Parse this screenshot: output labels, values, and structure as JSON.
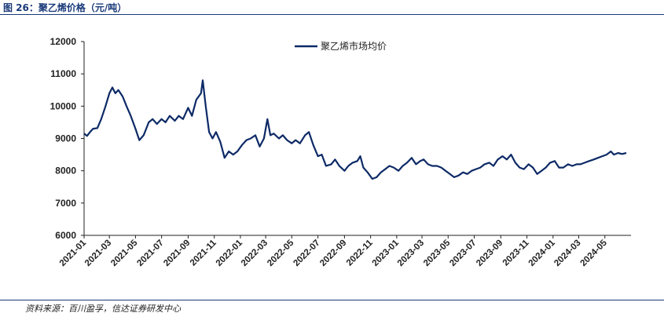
{
  "figure": {
    "title": "图 26：聚乙烯价格（元/吨）",
    "source": "资料来源：百川盈孚，信达证券研发中心"
  },
  "colors": {
    "series": "#0d2a66",
    "axis": "#222222",
    "title": "#1a3a7a"
  },
  "chart_data": {
    "type": "line",
    "title": "",
    "xlabel": "",
    "ylabel": "",
    "ylim": [
      6000,
      12000
    ],
    "yticks": [
      "6000",
      "7000",
      "8000",
      "9000",
      "10000",
      "11000",
      "12000"
    ],
    "xlim": [
      "2021-01",
      "2024-07"
    ],
    "xticks": [
      "2021-01",
      "2021-03",
      "2021-05",
      "2021-07",
      "2021-09",
      "2021-11",
      "2022-01",
      "2022-03",
      "2022-05",
      "2022-07",
      "2022-09",
      "2022-11",
      "2023-01",
      "2023-03",
      "2023-05",
      "2023-07",
      "2023-09",
      "2023-11",
      "2024-01",
      "2024-03",
      "2024-05"
    ],
    "grid": false,
    "legend": "top-center",
    "series": [
      {
        "name": "聚乙烯市场均价",
        "points": [
          [
            "2021-01-01",
            9150
          ],
          [
            "2021-01-08",
            9080
          ],
          [
            "2021-01-15",
            9200
          ],
          [
            "2021-01-22",
            9300
          ],
          [
            "2021-02-01",
            9320
          ],
          [
            "2021-02-10",
            9600
          ],
          [
            "2021-02-20",
            10000
          ],
          [
            "2021-03-01",
            10400
          ],
          [
            "2021-03-08",
            10580
          ],
          [
            "2021-03-15",
            10400
          ],
          [
            "2021-03-22",
            10500
          ],
          [
            "2021-04-01",
            10300
          ],
          [
            "2021-04-10",
            10000
          ],
          [
            "2021-04-20",
            9700
          ],
          [
            "2021-05-01",
            9300
          ],
          [
            "2021-05-10",
            8950
          ],
          [
            "2021-05-20",
            9100
          ],
          [
            "2021-06-01",
            9500
          ],
          [
            "2021-06-10",
            9600
          ],
          [
            "2021-06-20",
            9450
          ],
          [
            "2021-07-01",
            9600
          ],
          [
            "2021-07-10",
            9500
          ],
          [
            "2021-07-20",
            9700
          ],
          [
            "2021-08-01",
            9550
          ],
          [
            "2021-08-10",
            9700
          ],
          [
            "2021-08-20",
            9600
          ],
          [
            "2021-09-01",
            9950
          ],
          [
            "2021-09-10",
            9700
          ],
          [
            "2021-09-20",
            10200
          ],
          [
            "2021-10-01",
            10400
          ],
          [
            "2021-10-05",
            10800
          ],
          [
            "2021-10-12",
            10000
          ],
          [
            "2021-10-20",
            9200
          ],
          [
            "2021-10-28",
            9000
          ],
          [
            "2021-11-05",
            9200
          ],
          [
            "2021-11-15",
            8900
          ],
          [
            "2021-11-25",
            8400
          ],
          [
            "2021-12-05",
            8600
          ],
          [
            "2021-12-15",
            8500
          ],
          [
            "2021-12-25",
            8600
          ],
          [
            "2022-01-05",
            8800
          ],
          [
            "2022-01-15",
            8950
          ],
          [
            "2022-01-25",
            9000
          ],
          [
            "2022-02-05",
            9100
          ],
          [
            "2022-02-15",
            8750
          ],
          [
            "2022-02-25",
            9000
          ],
          [
            "2022-03-05",
            9600
          ],
          [
            "2022-03-12",
            9100
          ],
          [
            "2022-03-20",
            9150
          ],
          [
            "2022-04-01",
            9000
          ],
          [
            "2022-04-10",
            9100
          ],
          [
            "2022-04-20",
            8950
          ],
          [
            "2022-05-01",
            8850
          ],
          [
            "2022-05-10",
            8950
          ],
          [
            "2022-05-20",
            8850
          ],
          [
            "2022-06-01",
            9100
          ],
          [
            "2022-06-10",
            9200
          ],
          [
            "2022-06-20",
            8800
          ],
          [
            "2022-07-01",
            8450
          ],
          [
            "2022-07-10",
            8500
          ],
          [
            "2022-07-20",
            8150
          ],
          [
            "2022-08-01",
            8200
          ],
          [
            "2022-08-10",
            8350
          ],
          [
            "2022-08-20",
            8150
          ],
          [
            "2022-09-01",
            8000
          ],
          [
            "2022-09-10",
            8150
          ],
          [
            "2022-09-20",
            8250
          ],
          [
            "2022-10-01",
            8300
          ],
          [
            "2022-10-08",
            8450
          ],
          [
            "2022-10-15",
            8100
          ],
          [
            "2022-10-25",
            7950
          ],
          [
            "2022-11-05",
            7750
          ],
          [
            "2022-11-15",
            7800
          ],
          [
            "2022-11-25",
            7950
          ],
          [
            "2022-12-05",
            8050
          ],
          [
            "2022-12-15",
            8150
          ],
          [
            "2022-12-25",
            8100
          ],
          [
            "2023-01-05",
            8000
          ],
          [
            "2023-01-15",
            8150
          ],
          [
            "2023-01-25",
            8250
          ],
          [
            "2023-02-05",
            8400
          ],
          [
            "2023-02-15",
            8200
          ],
          [
            "2023-02-25",
            8300
          ],
          [
            "2023-03-05",
            8350
          ],
          [
            "2023-03-15",
            8200
          ],
          [
            "2023-03-25",
            8150
          ],
          [
            "2023-04-05",
            8150
          ],
          [
            "2023-04-15",
            8100
          ],
          [
            "2023-04-25",
            8000
          ],
          [
            "2023-05-05",
            7900
          ],
          [
            "2023-05-15",
            7800
          ],
          [
            "2023-05-25",
            7850
          ],
          [
            "2023-06-05",
            7950
          ],
          [
            "2023-06-15",
            7900
          ],
          [
            "2023-06-25",
            8000
          ],
          [
            "2023-07-05",
            8050
          ],
          [
            "2023-07-15",
            8100
          ],
          [
            "2023-07-25",
            8200
          ],
          [
            "2023-08-05",
            8250
          ],
          [
            "2023-08-15",
            8150
          ],
          [
            "2023-08-25",
            8350
          ],
          [
            "2023-09-05",
            8450
          ],
          [
            "2023-09-15",
            8350
          ],
          [
            "2023-09-25",
            8500
          ],
          [
            "2023-10-05",
            8250
          ],
          [
            "2023-10-15",
            8100
          ],
          [
            "2023-10-25",
            8050
          ],
          [
            "2023-11-05",
            8200
          ],
          [
            "2023-11-15",
            8100
          ],
          [
            "2023-11-25",
            7900
          ],
          [
            "2023-12-05",
            8000
          ],
          [
            "2023-12-15",
            8100
          ],
          [
            "2023-12-25",
            8250
          ],
          [
            "2024-01-05",
            8300
          ],
          [
            "2024-01-15",
            8100
          ],
          [
            "2024-01-25",
            8100
          ],
          [
            "2024-02-05",
            8200
          ],
          [
            "2024-02-15",
            8150
          ],
          [
            "2024-02-25",
            8200
          ],
          [
            "2024-03-05",
            8200
          ],
          [
            "2024-03-15",
            8250
          ],
          [
            "2024-03-25",
            8300
          ],
          [
            "2024-04-05",
            8350
          ],
          [
            "2024-04-15",
            8400
          ],
          [
            "2024-04-25",
            8450
          ],
          [
            "2024-05-05",
            8500
          ],
          [
            "2024-05-15",
            8600
          ],
          [
            "2024-05-22",
            8500
          ],
          [
            "2024-06-01",
            8550
          ],
          [
            "2024-06-10",
            8520
          ],
          [
            "2024-06-20",
            8550
          ]
        ]
      }
    ]
  }
}
